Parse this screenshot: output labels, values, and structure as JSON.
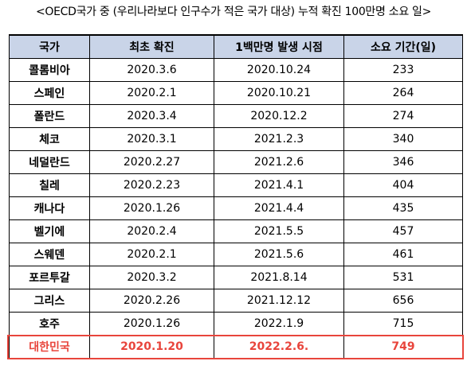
{
  "caption": "<OECD국가 중 (우리나라보다 인구수가 적은 국가 대상) 누적 확진 100만명 소요 일>",
  "table": {
    "headers": [
      "국가",
      "최초 확진",
      "1백만명 발생 시점",
      "소요 기간(일)"
    ],
    "rows": [
      [
        "콜롬비아",
        "2020.3.6",
        "2020.10.24",
        "233"
      ],
      [
        "스페인",
        "2020.2.1",
        "2020.10.21",
        "264"
      ],
      [
        "폴란드",
        "2020.3.4",
        "2020.12.2",
        "274"
      ],
      [
        "체코",
        "2020.3.1",
        "2021.2.3",
        "340"
      ],
      [
        "네덜란드",
        "2020.2.27",
        "2021.2.6",
        "346"
      ],
      [
        "칠레",
        "2020.2.23",
        "2021.4.1",
        "404"
      ],
      [
        "캐나다",
        "2020.1.26",
        "2021.4.4",
        "435"
      ],
      [
        "벨기에",
        "2020.2.4",
        "2021.5.5",
        "457"
      ],
      [
        "스웨덴",
        "2020.2.1",
        "2021.5.6",
        "461"
      ],
      [
        "포르투갈",
        "2020.3.2",
        "2021.8.14",
        "531"
      ],
      [
        "그리스",
        "2020.2.26",
        "2021.12.12",
        "656"
      ],
      [
        "호주",
        "2020.1.26",
        "2022.1.9",
        "715"
      ],
      [
        "대한민국",
        "2020.1.20",
        "2022.2.6.",
        "749"
      ]
    ],
    "highlight_row_index": 12,
    "colors": {
      "header_bg": "#c9d4e8",
      "highlight_text": "#e8453c",
      "highlight_border": "#e8453c"
    }
  }
}
